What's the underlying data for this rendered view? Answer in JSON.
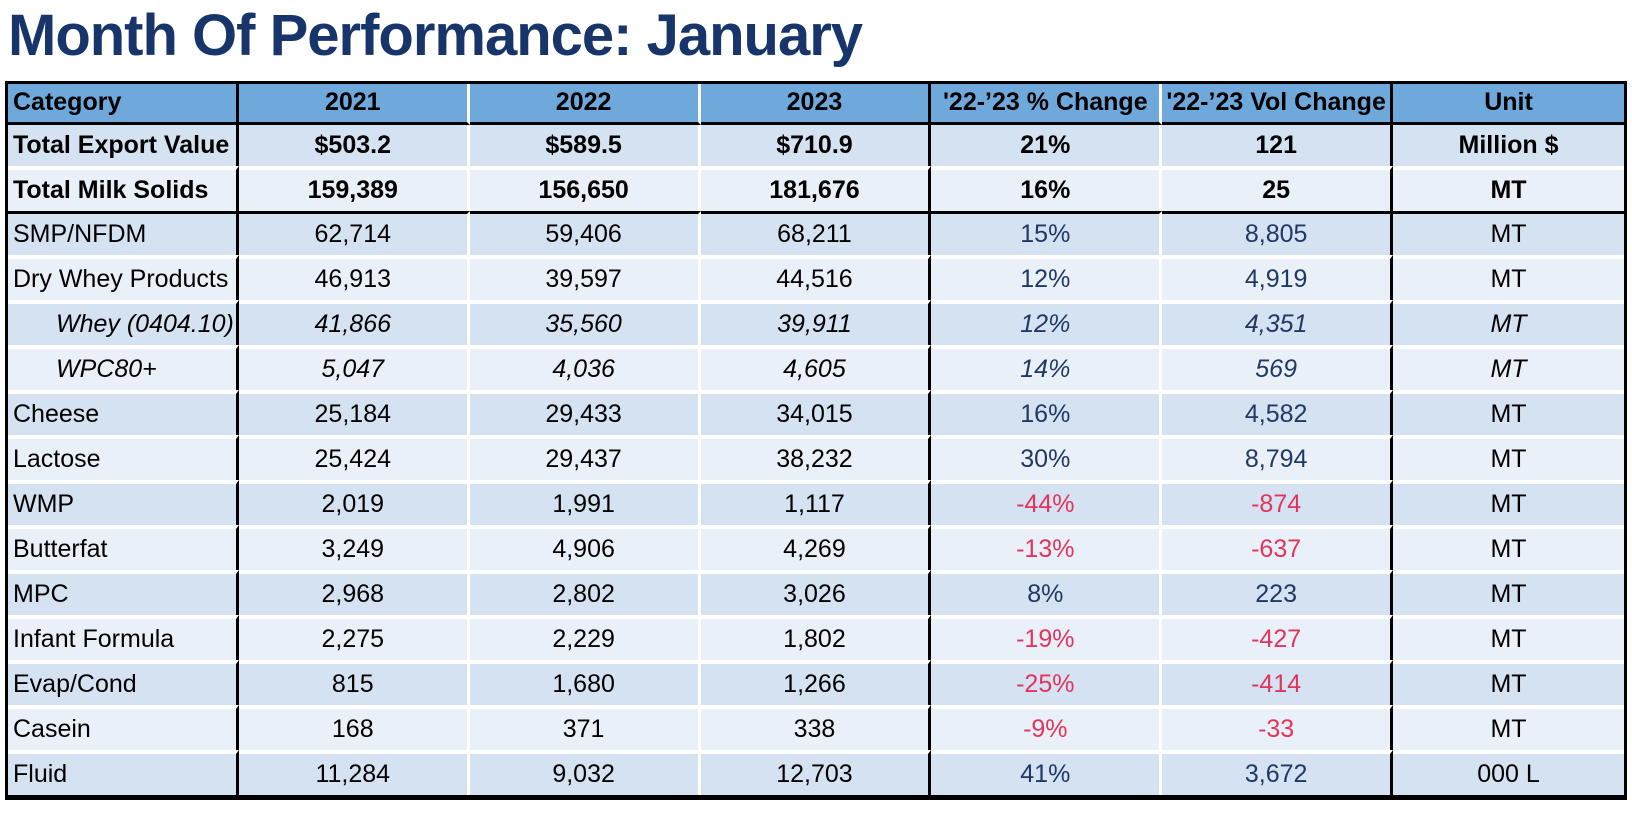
{
  "page": {
    "title": "Month Of Performance: January"
  },
  "colors": {
    "title_navy": "#17356B",
    "header_blue": "#6FA9DC",
    "row_dark": "#D5E2F1",
    "row_light": "#EAF0F8",
    "positive_navy": "#1F3864",
    "negative_red": "#E2345C",
    "border_black": "#000000"
  },
  "table": {
    "columns": [
      "Category",
      "2021",
      "2022",
      "2023",
      "'22-’23 % Change",
      "'22-’23 Vol Change",
      "Unit"
    ],
    "rows": [
      {
        "category": "Total Export Value",
        "y2021": "$503.2",
        "y2022": "$589.5",
        "y2023": "$710.9",
        "pct": "21%",
        "vol": "121",
        "unit": "Million $",
        "style": "total"
      },
      {
        "category": "Total Milk Solids",
        "y2021": "159,389",
        "y2022": "156,650",
        "y2023": "181,676",
        "pct": "16%",
        "vol": "25",
        "unit": "MT",
        "style": "total"
      },
      {
        "category": "SMP/NFDM",
        "y2021": "62,714",
        "y2022": "59,406",
        "y2023": "68,211",
        "pct": "15%",
        "vol": "8,805",
        "unit": "MT",
        "style": "item"
      },
      {
        "category": "Dry Whey Products",
        "y2021": "46,913",
        "y2022": "39,597",
        "y2023": "44,516",
        "pct": "12%",
        "vol": "4,919",
        "unit": "MT",
        "style": "item"
      },
      {
        "category": "Whey (0404.10)",
        "y2021": "41,866",
        "y2022": "35,560",
        "y2023": "39,911",
        "pct": "12%",
        "vol": "4,351",
        "unit": "MT",
        "style": "subitem"
      },
      {
        "category": "WPC80+",
        "y2021": "5,047",
        "y2022": "4,036",
        "y2023": "4,605",
        "pct": "14%",
        "vol": "569",
        "unit": "MT",
        "style": "subitem"
      },
      {
        "category": "Cheese",
        "y2021": "25,184",
        "y2022": "29,433",
        "y2023": "34,015",
        "pct": "16%",
        "vol": "4,582",
        "unit": "MT",
        "style": "item"
      },
      {
        "category": "Lactose",
        "y2021": "25,424",
        "y2022": "29,437",
        "y2023": "38,232",
        "pct": "30%",
        "vol": "8,794",
        "unit": "MT",
        "style": "item"
      },
      {
        "category": "WMP",
        "y2021": "2,019",
        "y2022": "1,991",
        "y2023": "1,117",
        "pct": "-44%",
        "vol": "-874",
        "unit": "MT",
        "style": "item"
      },
      {
        "category": "Butterfat",
        "y2021": "3,249",
        "y2022": "4,906",
        "y2023": "4,269",
        "pct": "-13%",
        "vol": "-637",
        "unit": "MT",
        "style": "item"
      },
      {
        "category": "MPC",
        "y2021": "2,968",
        "y2022": "2,802",
        "y2023": "3,026",
        "pct": "8%",
        "vol": "223",
        "unit": "MT",
        "style": "item"
      },
      {
        "category": "Infant Formula",
        "y2021": "2,275",
        "y2022": "2,229",
        "y2023": "1,802",
        "pct": "-19%",
        "vol": "-427",
        "unit": "MT",
        "style": "item"
      },
      {
        "category": "Evap/Cond",
        "y2021": "815",
        "y2022": "1,680",
        "y2023": "1,266",
        "pct": "-25%",
        "vol": "-414",
        "unit": "MT",
        "style": "item"
      },
      {
        "category": "Casein",
        "y2021": "168",
        "y2022": "371",
        "y2023": "338",
        "pct": "-9%",
        "vol": "-33",
        "unit": "MT",
        "style": "item"
      },
      {
        "category": "Fluid",
        "y2021": "11,284",
        "y2022": "9,032",
        "y2023": "12,703",
        "pct": "41%",
        "vol": "3,672",
        "unit": "000 L",
        "style": "item"
      }
    ]
  },
  "chart_data": {
    "type": "table",
    "title": "Month Of Performance: January",
    "columns": [
      "Category",
      "2021",
      "2022",
      "2023",
      "'22-’23 % Change",
      "'22-’23 Vol Change",
      "Unit"
    ],
    "rows": [
      [
        "Total Export Value",
        503.2,
        589.5,
        710.9,
        "21%",
        121,
        "Million $"
      ],
      [
        "Total Milk Solids",
        159389,
        156650,
        181676,
        "16%",
        25,
        "MT"
      ],
      [
        "SMP/NFDM",
        62714,
        59406,
        68211,
        "15%",
        8805,
        "MT"
      ],
      [
        "Dry Whey Products",
        46913,
        39597,
        44516,
        "12%",
        4919,
        "MT"
      ],
      [
        "Whey (0404.10)",
        41866,
        35560,
        39911,
        "12%",
        4351,
        "MT"
      ],
      [
        "WPC80+",
        5047,
        4036,
        4605,
        "14%",
        569,
        "MT"
      ],
      [
        "Cheese",
        25184,
        29433,
        34015,
        "16%",
        4582,
        "MT"
      ],
      [
        "Lactose",
        25424,
        29437,
        38232,
        "30%",
        8794,
        "MT"
      ],
      [
        "WMP",
        2019,
        1991,
        1117,
        "-44%",
        -874,
        "MT"
      ],
      [
        "Butterfat",
        3249,
        4906,
        4269,
        "-13%",
        -637,
        "MT"
      ],
      [
        "MPC",
        2968,
        2802,
        3026,
        "8%",
        223,
        "MT"
      ],
      [
        "Infant Formula",
        2275,
        2229,
        1802,
        "-19%",
        -427,
        "MT"
      ],
      [
        "Evap/Cond",
        815,
        1680,
        1266,
        "-25%",
        -414,
        "MT"
      ],
      [
        "Casein",
        168,
        371,
        338,
        "-9%",
        -33,
        "MT"
      ],
      [
        "Fluid",
        11284,
        9032,
        12703,
        "41%",
        3672,
        "000 L"
      ]
    ]
  }
}
